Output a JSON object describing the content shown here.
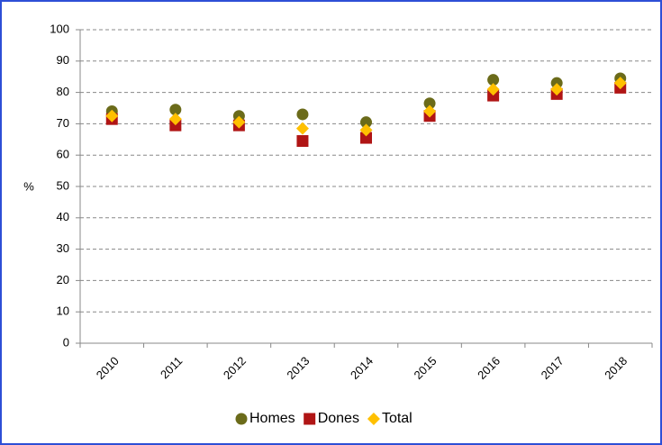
{
  "chart_data": {
    "type": "scatter",
    "ylabel": "%",
    "categories": [
      "2010",
      "2011",
      "2012",
      "2013",
      "2014",
      "2015",
      "2016",
      "2017",
      "2018"
    ],
    "series": [
      {
        "name": "Homes",
        "color": "#6b6b1a",
        "marker": "circle",
        "values": [
          74,
          74.5,
          72.5,
          73,
          70.5,
          76.5,
          84,
          83,
          84.5
        ]
      },
      {
        "name": "Dones",
        "color": "#b01515",
        "marker": "square",
        "values": [
          71.5,
          69.5,
          69.5,
          64.5,
          65.5,
          72.5,
          79,
          79.5,
          81.5
        ]
      },
      {
        "name": "Total",
        "color": "#ffc000",
        "marker": "diamond",
        "values": [
          72.5,
          71.5,
          70.5,
          68.5,
          68,
          74,
          81,
          81,
          83
        ]
      }
    ],
    "ylim": [
      0,
      100
    ],
    "yticks": [
      0,
      10,
      20,
      30,
      40,
      50,
      60,
      70,
      80,
      90,
      100
    ],
    "grid": true,
    "legend": "bottom"
  }
}
